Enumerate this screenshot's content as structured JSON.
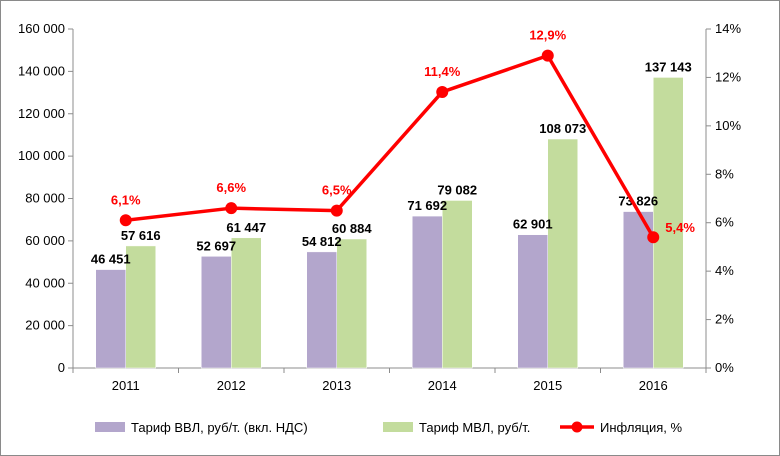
{
  "chart_data": {
    "type": "bar",
    "categories": [
      "2011",
      "2012",
      "2013",
      "2014",
      "2015",
      "2016"
    ],
    "series": [
      {
        "name": "Тариф ВВЛ, руб/т. (вкл. НДС)",
        "kind": "bar",
        "axis": "left",
        "color": "#b3a6cc",
        "values": [
          46451,
          52697,
          54812,
          71692,
          62901,
          73826
        ],
        "labels": [
          "46 451",
          "52 697",
          "54 812",
          "71 692",
          "62 901",
          "73 826"
        ]
      },
      {
        "name": "Тариф МВЛ, руб/т.",
        "kind": "bar",
        "axis": "left",
        "color": "#c3dc9d",
        "values": [
          57616,
          61447,
          60884,
          79082,
          108073,
          137143
        ],
        "labels": [
          "57 616",
          "61 447",
          "60 884",
          "79 082",
          "108 073",
          "137 143"
        ]
      },
      {
        "name": "Инфляция, %",
        "kind": "line",
        "axis": "right",
        "color": "#ff0000",
        "values": [
          6.1,
          6.6,
          6.5,
          11.4,
          12.9,
          5.4
        ],
        "labels": [
          "6,1%",
          "6,6%",
          "6,5%",
          "11,4%",
          "12,9%",
          "5,4%"
        ]
      }
    ],
    "left_axis": {
      "ylim": [
        0,
        160000
      ],
      "ticks": [
        0,
        20000,
        40000,
        60000,
        80000,
        100000,
        120000,
        140000,
        160000
      ],
      "tick_labels": [
        "0",
        "20 000",
        "40 000",
        "60 000",
        "80 000",
        "100 000",
        "120 000",
        "140 000",
        "160 000"
      ]
    },
    "right_axis": {
      "ylim": [
        0,
        14
      ],
      "ticks": [
        0,
        2,
        4,
        6,
        8,
        10,
        12,
        14
      ],
      "tick_labels": [
        "0%",
        "2%",
        "4%",
        "6%",
        "8%",
        "10%",
        "12%",
        "14%"
      ]
    },
    "grid": false,
    "legend_position": "bottom",
    "title": "",
    "xlabel": "",
    "ylabel": ""
  }
}
